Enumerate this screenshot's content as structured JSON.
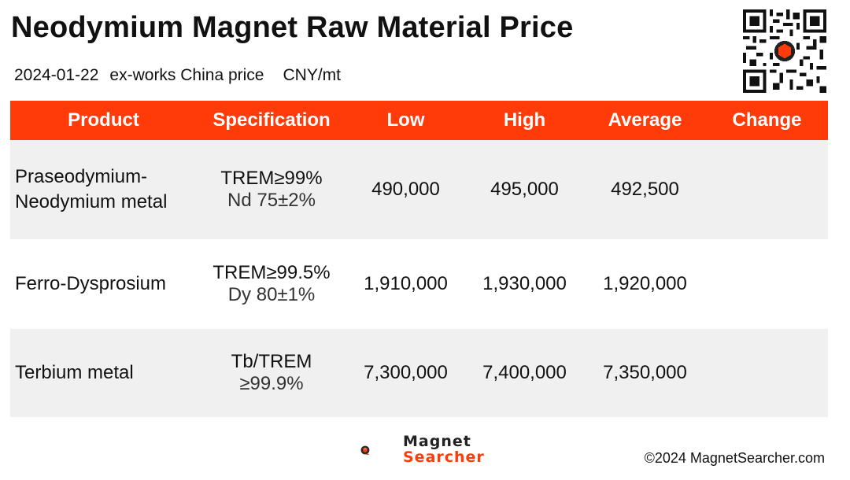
{
  "title": "Neodymium Magnet Raw Material Price",
  "subtitle": {
    "date": "2024-01-22",
    "basis": "ex-works China price",
    "unit": "CNY/mt"
  },
  "table": {
    "headers": [
      "Product",
      "Specification",
      "Low",
      "High",
      "Average",
      "Change"
    ],
    "rows": [
      {
        "product": [
          "Praseodymium-",
          "Neodymium metal"
        ],
        "spec": [
          "TREM≥99%",
          "Nd 75±2%"
        ],
        "low": "490,000",
        "high": "495,000",
        "average": "492,500",
        "change": ""
      },
      {
        "product": [
          "Ferro-Dysprosium"
        ],
        "spec": [
          "TREM≥99.5%",
          "Dy 80±1%"
        ],
        "low": "1,910,000",
        "high": "1,930,000",
        "average": "1,920,000",
        "change": ""
      },
      {
        "product": [
          "Terbium metal"
        ],
        "spec": [
          "Tb/TREM",
          "≥99.9%"
        ],
        "low": "7,300,000",
        "high": "7,400,000",
        "average": "7,350,000",
        "change": ""
      }
    ]
  },
  "footer": {
    "logo_line1": "Magnet",
    "logo_line2": "Searcher",
    "copyright": "©2024 MagnetSearcher.com"
  },
  "colors": {
    "accent": "#ff3b0a",
    "row_shade": "#f0f0f0"
  },
  "icons": {
    "qr": "qr-code-icon",
    "logo": "magnet-searcher-logo-icon"
  }
}
